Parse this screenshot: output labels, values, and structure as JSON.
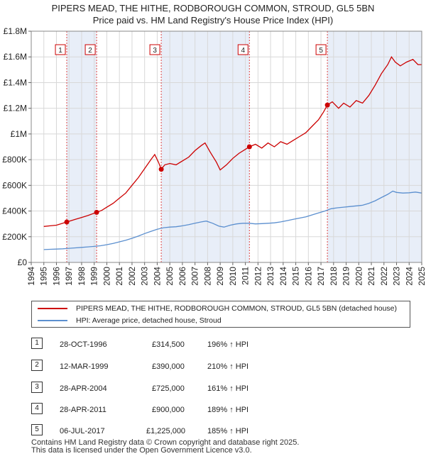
{
  "chart_data": {
    "type": "line",
    "title": "PIPERS MEAD, THE HITHE, RODBOROUGH COMMON, STROUD, GL5 5BN",
    "subtitle": "Price paid vs. HM Land Registry's House Price Index (HPI)",
    "xlim": [
      1994,
      2025
    ],
    "ylim": [
      0,
      1800000
    ],
    "x_ticks": [
      "1994",
      "1995",
      "1996",
      "1997",
      "1998",
      "1999",
      "2000",
      "2001",
      "2002",
      "2003",
      "2004",
      "2005",
      "2006",
      "2007",
      "2008",
      "2009",
      "2010",
      "2011",
      "2012",
      "2013",
      "2014",
      "2015",
      "2016",
      "2017",
      "2018",
      "2019",
      "2020",
      "2021",
      "2022",
      "2023",
      "2024",
      "2025"
    ],
    "y_ticks": [
      {
        "value": 0,
        "label": "£0"
      },
      {
        "value": 200000,
        "label": "£200K"
      },
      {
        "value": 400000,
        "label": "£400K"
      },
      {
        "value": 600000,
        "label": "£600K"
      },
      {
        "value": 800000,
        "label": "£800K"
      },
      {
        "value": 1000000,
        "label": "£1M"
      },
      {
        "value": 1200000,
        "label": "£1.2M"
      },
      {
        "value": 1400000,
        "label": "£1.4M"
      },
      {
        "value": 1600000,
        "label": "£1.6M"
      },
      {
        "value": 1800000,
        "label": "£1.8M"
      }
    ],
    "grid": true,
    "shaded_ranges": [
      [
        1996.82,
        1999.19
      ],
      [
        2004.32,
        2011.32
      ],
      [
        2017.51,
        2025.0
      ]
    ],
    "series": [
      {
        "name": "PIPERS MEAD, THE HITHE, RODBOROUGH COMMON, STROUD, GL5 5BN (detached house)",
        "color": "#cc0000",
        "points": [
          [
            1995.0,
            280000
          ],
          [
            1995.5,
            285000
          ],
          [
            1996.0,
            290000
          ],
          [
            1996.5,
            305000
          ],
          [
            1996.82,
            314500
          ],
          [
            1997.5,
            335000
          ],
          [
            1998.0,
            350000
          ],
          [
            1998.5,
            365000
          ],
          [
            1999.19,
            390000
          ],
          [
            1999.6,
            405000
          ],
          [
            2000.0,
            430000
          ],
          [
            2000.5,
            460000
          ],
          [
            2001.0,
            500000
          ],
          [
            2001.5,
            540000
          ],
          [
            2002.0,
            600000
          ],
          [
            2002.5,
            660000
          ],
          [
            2003.0,
            730000
          ],
          [
            2003.5,
            800000
          ],
          [
            2003.8,
            840000
          ],
          [
            2004.1,
            780000
          ],
          [
            2004.32,
            725000
          ],
          [
            2004.6,
            760000
          ],
          [
            2005.0,
            770000
          ],
          [
            2005.5,
            760000
          ],
          [
            2006.0,
            790000
          ],
          [
            2006.5,
            820000
          ],
          [
            2007.0,
            870000
          ],
          [
            2007.5,
            910000
          ],
          [
            2007.8,
            930000
          ],
          [
            2008.2,
            860000
          ],
          [
            2008.7,
            780000
          ],
          [
            2009.0,
            720000
          ],
          [
            2009.5,
            760000
          ],
          [
            2010.0,
            810000
          ],
          [
            2010.5,
            850000
          ],
          [
            2011.0,
            880000
          ],
          [
            2011.32,
            900000
          ],
          [
            2011.8,
            920000
          ],
          [
            2012.3,
            890000
          ],
          [
            2012.8,
            930000
          ],
          [
            2013.3,
            900000
          ],
          [
            2013.8,
            940000
          ],
          [
            2014.3,
            920000
          ],
          [
            2014.8,
            950000
          ],
          [
            2015.3,
            980000
          ],
          [
            2015.8,
            1010000
          ],
          [
            2016.3,
            1060000
          ],
          [
            2016.8,
            1110000
          ],
          [
            2017.2,
            1170000
          ],
          [
            2017.51,
            1225000
          ],
          [
            2017.9,
            1250000
          ],
          [
            2018.4,
            1200000
          ],
          [
            2018.8,
            1240000
          ],
          [
            2019.3,
            1210000
          ],
          [
            2019.8,
            1260000
          ],
          [
            2020.3,
            1240000
          ],
          [
            2020.8,
            1300000
          ],
          [
            2021.3,
            1380000
          ],
          [
            2021.8,
            1470000
          ],
          [
            2022.3,
            1540000
          ],
          [
            2022.6,
            1600000
          ],
          [
            2022.9,
            1560000
          ],
          [
            2023.3,
            1530000
          ],
          [
            2023.8,
            1560000
          ],
          [
            2024.3,
            1580000
          ],
          [
            2024.7,
            1540000
          ],
          [
            2025.0,
            1540000
          ]
        ]
      },
      {
        "name": "HPI: Average price, detached house, Stroud",
        "color": "#5b8fcf",
        "points": [
          [
            1995.0,
            100000
          ],
          [
            1995.5,
            102000
          ],
          [
            1996.0,
            104000
          ],
          [
            1996.5,
            106000
          ],
          [
            1997.0,
            110000
          ],
          [
            1997.5,
            113000
          ],
          [
            1998.0,
            117000
          ],
          [
            1998.5,
            121000
          ],
          [
            1999.0,
            125000
          ],
          [
            1999.5,
            130000
          ],
          [
            2000.0,
            138000
          ],
          [
            2000.5,
            148000
          ],
          [
            2001.0,
            160000
          ],
          [
            2001.5,
            172000
          ],
          [
            2002.0,
            188000
          ],
          [
            2002.5,
            205000
          ],
          [
            2003.0,
            225000
          ],
          [
            2003.5,
            242000
          ],
          [
            2004.0,
            258000
          ],
          [
            2004.5,
            270000
          ],
          [
            2005.0,
            275000
          ],
          [
            2005.5,
            278000
          ],
          [
            2006.0,
            285000
          ],
          [
            2006.5,
            294000
          ],
          [
            2007.0,
            305000
          ],
          [
            2007.5,
            315000
          ],
          [
            2007.9,
            322000
          ],
          [
            2008.4,
            305000
          ],
          [
            2008.9,
            282000
          ],
          [
            2009.3,
            275000
          ],
          [
            2009.8,
            290000
          ],
          [
            2010.3,
            300000
          ],
          [
            2010.8,
            305000
          ],
          [
            2011.3,
            305000
          ],
          [
            2011.8,
            300000
          ],
          [
            2012.3,
            302000
          ],
          [
            2012.8,
            305000
          ],
          [
            2013.3,
            308000
          ],
          [
            2013.8,
            315000
          ],
          [
            2014.3,
            325000
          ],
          [
            2014.8,
            335000
          ],
          [
            2015.3,
            345000
          ],
          [
            2015.8,
            355000
          ],
          [
            2016.3,
            370000
          ],
          [
            2016.8,
            385000
          ],
          [
            2017.3,
            400000
          ],
          [
            2017.8,
            418000
          ],
          [
            2018.3,
            425000
          ],
          [
            2018.8,
            430000
          ],
          [
            2019.3,
            435000
          ],
          [
            2019.8,
            440000
          ],
          [
            2020.3,
            445000
          ],
          [
            2020.8,
            460000
          ],
          [
            2021.3,
            480000
          ],
          [
            2021.8,
            505000
          ],
          [
            2022.3,
            530000
          ],
          [
            2022.7,
            555000
          ],
          [
            2023.0,
            545000
          ],
          [
            2023.5,
            540000
          ],
          [
            2024.0,
            542000
          ],
          [
            2024.5,
            548000
          ],
          [
            2025.0,
            540000
          ]
        ]
      }
    ],
    "sales": [
      {
        "n": "1",
        "x": 1996.82,
        "price": 314500
      },
      {
        "n": "2",
        "x": 1999.19,
        "price": 390000
      },
      {
        "n": "3",
        "x": 2004.32,
        "price": 725000
      },
      {
        "n": "4",
        "x": 2011.32,
        "price": 900000
      },
      {
        "n": "5",
        "x": 2017.51,
        "price": 1225000
      }
    ]
  },
  "legend": {
    "property_label": "PIPERS MEAD, THE HITHE, RODBOROUGH COMMON, STROUD, GL5 5BN (detached house)",
    "hpi_label": "HPI: Average price, detached house, Stroud"
  },
  "table": [
    {
      "n": "1",
      "date": "28-OCT-1996",
      "price": "£314,500",
      "hpi": "196% ↑ HPI"
    },
    {
      "n": "2",
      "date": "12-MAR-1999",
      "price": "£390,000",
      "hpi": "210% ↑ HPI"
    },
    {
      "n": "3",
      "date": "28-APR-2004",
      "price": "£725,000",
      "hpi": "161% ↑ HPI"
    },
    {
      "n": "4",
      "date": "28-APR-2011",
      "price": "£900,000",
      "hpi": "189% ↑ HPI"
    },
    {
      "n": "5",
      "date": "06-JUL-2017",
      "price": "£1,225,000",
      "hpi": "185% ↑ HPI"
    }
  ],
  "footer": {
    "line1": "Contains HM Land Registry data © Crown copyright and database right 2025.",
    "line2": "This data is licensed under the Open Government Licence v3.0."
  },
  "colors": {
    "property": "#cc0000",
    "hpi": "#5b8fcf",
    "shade": "#e8eef8",
    "grid": "#d8d8d8",
    "sale_line": "#dd4444"
  }
}
